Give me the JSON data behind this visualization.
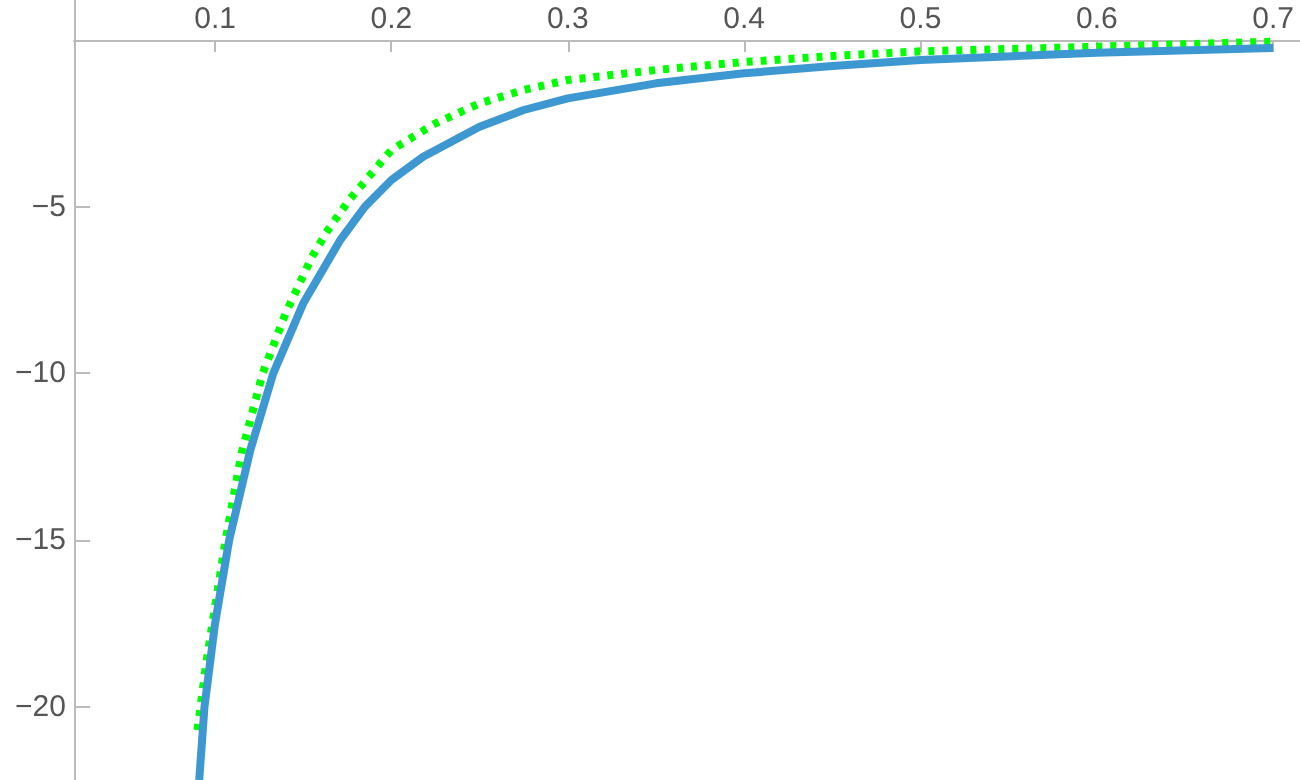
{
  "chart_data": {
    "type": "line",
    "xlim": [
      0.02,
      0.715
    ],
    "ylim": [
      -22.2,
      1.2
    ],
    "xticks": [
      0.1,
      0.2,
      0.3,
      0.4,
      0.5,
      0.6,
      0.7
    ],
    "yticks": [
      {
        "value": -5,
        "label": "−5"
      },
      {
        "value": -10,
        "label": "−10"
      },
      {
        "value": -15,
        "label": "−15"
      },
      {
        "value": -20,
        "label": "−20"
      }
    ],
    "grid": false,
    "marker": "none",
    "series": [
      {
        "color": "#00ff00",
        "line_style": "dotted",
        "x": [
          0.09,
          0.095,
          0.1,
          0.106,
          0.115,
          0.127,
          0.14,
          0.155,
          0.164,
          0.176,
          0.2,
          0.225,
          0.25,
          0.275,
          0.3,
          0.35,
          0.4,
          0.45,
          0.5,
          0.6,
          0.7
        ],
        "values": [
          -20.7,
          -18.7,
          -17,
          -15,
          -12.4,
          -10,
          -8.2,
          -6.5,
          -5.7,
          -4.8,
          -3.3,
          -2.5,
          -1.9,
          -1.5,
          -1.2,
          -0.9,
          -0.66,
          -0.48,
          -0.34,
          -0.2,
          -0.05
        ]
      },
      {
        "color": "#3d97d0",
        "line_style": "solid",
        "x": [
          0.091,
          0.094,
          0.1,
          0.108,
          0.12,
          0.133,
          0.15,
          0.171,
          0.185,
          0.2,
          0.218,
          0.25,
          0.275,
          0.3,
          0.35,
          0.4,
          0.45,
          0.5,
          0.6,
          0.7
        ],
        "values": [
          -22.2,
          -20,
          -17.5,
          -15,
          -12.3,
          -10,
          -7.9,
          -6,
          -5,
          -4.2,
          -3.5,
          -2.6,
          -2.1,
          -1.75,
          -1.3,
          -1.0,
          -0.78,
          -0.6,
          -0.38,
          -0.24
        ]
      }
    ]
  }
}
